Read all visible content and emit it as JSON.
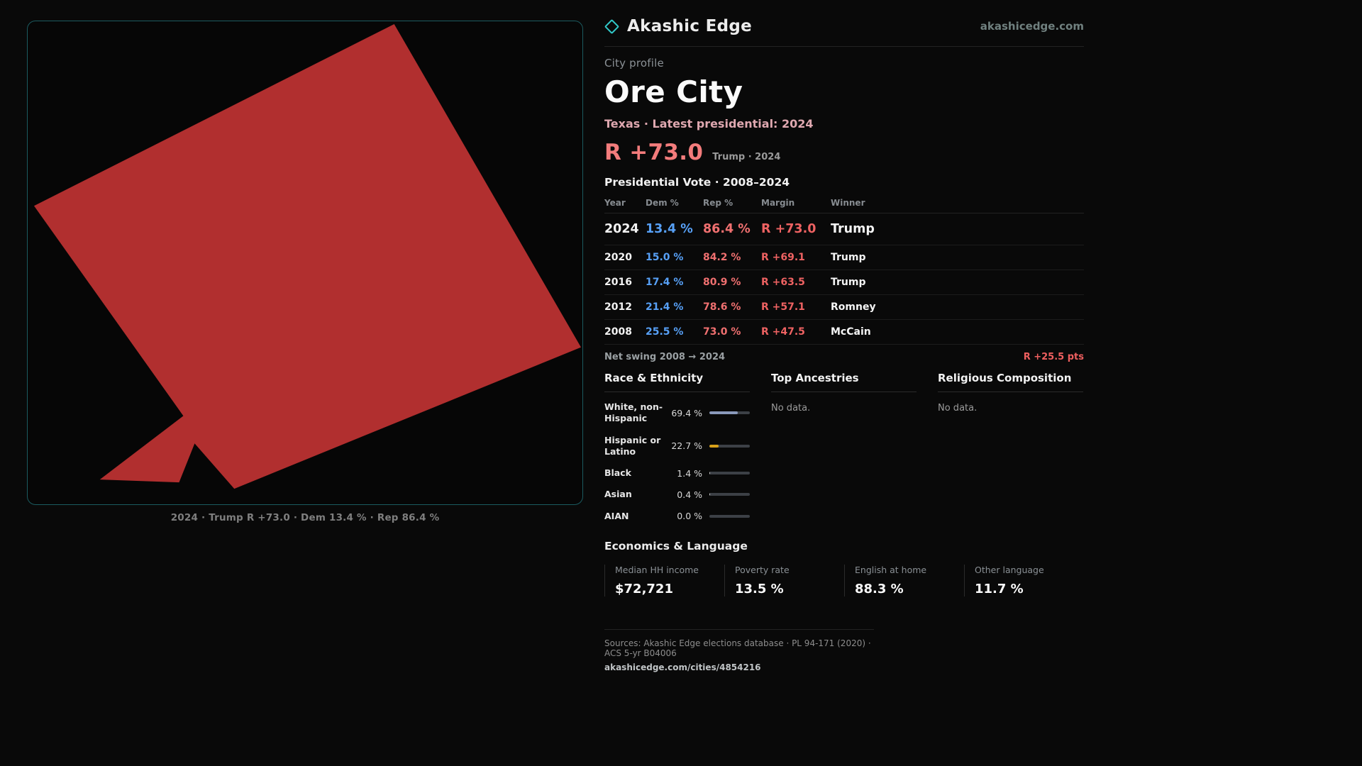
{
  "brand": {
    "name": "Akashic Edge",
    "domain": "akashicedge.com",
    "accent_color": "#31c7c7"
  },
  "profile": {
    "kicker": "City profile",
    "city": "Ore City",
    "subtitle": "Texas · Latest presidential: 2024",
    "margin_big": "R +73.0",
    "margin_context": "Trump · 2024"
  },
  "vote_table": {
    "title": "Presidential Vote · 2008–2024",
    "headers": [
      "Year",
      "Dem %",
      "Rep %",
      "Margin",
      "Winner"
    ],
    "rows": [
      {
        "year": "2024",
        "dem": "13.4 %",
        "rep": "86.4 %",
        "margin": "R +73.0",
        "winner": "Trump"
      },
      {
        "year": "2020",
        "dem": "15.0 %",
        "rep": "84.2 %",
        "margin": "R +69.1",
        "winner": "Trump"
      },
      {
        "year": "2016",
        "dem": "17.4 %",
        "rep": "80.9 %",
        "margin": "R +63.5",
        "winner": "Trump"
      },
      {
        "year": "2012",
        "dem": "21.4 %",
        "rep": "78.6 %",
        "margin": "R +57.1",
        "winner": "Romney"
      },
      {
        "year": "2008",
        "dem": "25.5 %",
        "rep": "73.0 %",
        "margin": "R +47.5",
        "winner": "McCain"
      }
    ],
    "net_swing_label": "Net swing 2008 → 2024",
    "net_swing_value": "R +25.5 pts"
  },
  "race": {
    "title": "Race & Ethnicity",
    "rows": [
      {
        "label": "White, non-Hispanic",
        "value": "69.4 %",
        "pct": 69.4,
        "color": "#8a99bb"
      },
      {
        "label": "Hispanic or Latino",
        "value": "22.7 %",
        "pct": 22.7,
        "color": "#d7a019"
      },
      {
        "label": "Black",
        "value": "1.4 %",
        "pct": 1.4,
        "color": "#c8c8c8"
      },
      {
        "label": "Asian",
        "value": "0.4 %",
        "pct": 0.4,
        "color": "#c8c8c8"
      },
      {
        "label": "AIAN",
        "value": "0.0 %",
        "pct": 0.0,
        "color": "#c8c8c8"
      }
    ]
  },
  "ancestries": {
    "title": "Top Ancestries",
    "empty": "No data."
  },
  "religion": {
    "title": "Religious Composition",
    "empty": "No data."
  },
  "economics": {
    "title": "Economics & Language",
    "stats": [
      {
        "label": "Median HH income",
        "value": "$72,721"
      },
      {
        "label": "Poverty rate",
        "value": "13.5 %"
      },
      {
        "label": "English at home",
        "value": "88.3 %"
      },
      {
        "label": "Other language",
        "value": "11.7 %"
      }
    ]
  },
  "footer": {
    "sources": "Sources: Akashic Edge elections database · PL 94-171 (2020) · ACS 5-yr B04006",
    "permalink": "akashicedge.com/cities/4854216"
  },
  "map": {
    "caption": "2024 · Trump R +73.0 · Dem 13.4 % · Rep 86.4 %",
    "shape_color": "#b12f2f"
  }
}
